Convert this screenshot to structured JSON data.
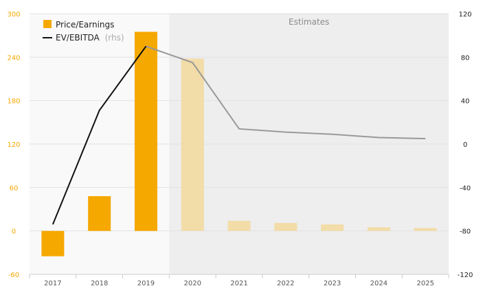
{
  "chart_data": {
    "type": "bar",
    "categories": [
      "2017",
      "2018",
      "2019",
      "2020",
      "2021",
      "2022",
      "2023",
      "2024",
      "2025"
    ],
    "series": [
      {
        "name": "Price/Earnings",
        "type": "bar",
        "axis": "left",
        "values": [
          -35,
          48,
          275,
          238,
          14,
          11,
          9,
          5,
          4
        ],
        "color": "#f5a800",
        "estimate_color": "#f2dca8"
      },
      {
        "name": "EV/EBITDA",
        "name_suffix": "(rhs)",
        "type": "line",
        "axis": "right",
        "values": [
          -74,
          31,
          90,
          75,
          14,
          11,
          9,
          6,
          5
        ],
        "color": "#111111",
        "estimate_color": "#999999"
      }
    ],
    "left_axis": {
      "min": -60,
      "max": 300,
      "ticks": [
        -60,
        0,
        60,
        120,
        180,
        240,
        300
      ]
    },
    "right_axis": {
      "min": -120,
      "max": 120,
      "ticks": [
        -120,
        -80,
        -40,
        0,
        40,
        80,
        120
      ]
    },
    "estimates_label": "Estimates",
    "estimates_start_after": "2019",
    "legend_position": "top-left",
    "grid": true,
    "background_color": "#f9f9f9",
    "estimates_background_color": "#eeeeee"
  }
}
